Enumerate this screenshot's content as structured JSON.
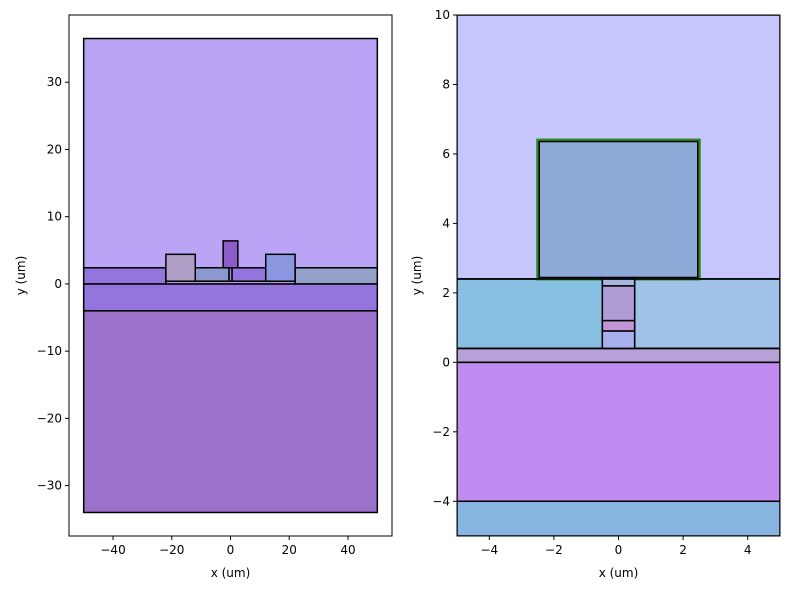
{
  "chart_data": [
    {
      "type": "layout",
      "xlabel": "x (um)",
      "ylabel": "y (um)",
      "xlim": [
        -55,
        55
      ],
      "ylim": [
        -37.5,
        40
      ],
      "xticks": [
        -40,
        -20,
        0,
        20,
        40
      ],
      "xtick_labels": [
        "−40",
        "−20",
        "0",
        "20",
        "40"
      ],
      "yticks": [
        -30,
        -20,
        -10,
        0,
        10,
        20,
        30
      ],
      "ytick_labels": [
        "−30",
        "−20",
        "−10",
        "0",
        "10",
        "20",
        "30"
      ],
      "rects": [
        {
          "name": "top-cladding",
          "x0": -50,
          "x1": 50,
          "y0": 2.4,
          "y1": 36.5,
          "fill": "#b9a4f6"
        },
        {
          "name": "bottom-substrate",
          "x0": -50,
          "x1": 50,
          "y0": -34,
          "y1": -4,
          "fill": "#9a72cc"
        },
        {
          "name": "box-layer",
          "x0": -50,
          "x1": 50,
          "y0": -4,
          "y1": 0,
          "fill": "#9474dd"
        },
        {
          "name": "slab-left",
          "x0": -50,
          "x1": -22,
          "y0": 0,
          "y1": 2.4,
          "fill": "#9474dd"
        },
        {
          "name": "slab-left-mid",
          "x0": -22,
          "x1": -13,
          "y0": 0.4,
          "y1": 2.4,
          "fill": "#a68fcf"
        },
        {
          "name": "slab-center-left",
          "x0": -13,
          "x1": -0.5,
          "y0": 0.4,
          "y1": 2.4,
          "fill": "#8d98cf"
        },
        {
          "name": "slab-center-right",
          "x0": 0.5,
          "x1": 13,
          "y0": 0.4,
          "y1": 2.4,
          "fill": "#9474dd"
        },
        {
          "name": "slab-right",
          "x0": 22,
          "x1": 50,
          "y0": 0,
          "y1": 2.4,
          "fill": "#94a0c8"
        },
        {
          "name": "thin-layer",
          "x0": -22,
          "x1": 22,
          "y0": 0,
          "y1": 0.4,
          "fill": "#b09cd8"
        },
        {
          "name": "left-electrode",
          "x0": -22,
          "x1": -12,
          "y0": 0.4,
          "y1": 4.4,
          "fill": "#b0a0c8"
        },
        {
          "name": "center-waveguide",
          "x0": -2.5,
          "x1": 2.5,
          "y0": 2.4,
          "y1": 6.4,
          "fill": "#8c5cc8"
        },
        {
          "name": "right-electrode",
          "x0": 12,
          "x1": 22,
          "y0": 0.4,
          "y1": 4.4,
          "fill": "#8a96e0"
        },
        {
          "name": "center-core",
          "x0": -0.5,
          "x1": 0.5,
          "y0": 0.4,
          "y1": 2.4,
          "fill": "#a08ad8"
        }
      ]
    },
    {
      "type": "layout",
      "xlabel": "x (um)",
      "ylabel": "y (um)",
      "xlim": [
        -5,
        5
      ],
      "ylim": [
        -5,
        10
      ],
      "xticks": [
        -4,
        -2,
        0,
        2,
        4
      ],
      "xtick_labels": [
        "−4",
        "−2",
        "0",
        "2",
        "4"
      ],
      "yticks": [
        -4,
        -2,
        0,
        2,
        4,
        6,
        8,
        10
      ],
      "ytick_labels": [
        "−4",
        "−2",
        "0",
        "2",
        "4",
        "6",
        "8",
        "10"
      ],
      "rects": [
        {
          "name": "top-cladding",
          "x0": -5,
          "x1": 5,
          "y0": 2.4,
          "y1": 10,
          "fill": "#c6c6fc"
        },
        {
          "name": "slab-left",
          "x0": -5,
          "x1": -0.5,
          "y0": 0.4,
          "y1": 2.4,
          "fill": "#88c0e4"
        },
        {
          "name": "slab-right",
          "x0": 0.5,
          "x1": 5,
          "y0": 0.4,
          "y1": 2.4,
          "fill": "#a0c2e8"
        },
        {
          "name": "thin-layer",
          "x0": -5,
          "x1": 5,
          "y0": 0,
          "y1": 0.4,
          "fill": "#b8a0d8"
        },
        {
          "name": "box-layer",
          "x0": -5,
          "x1": 5,
          "y0": -4,
          "y1": 0,
          "fill": "#c08cf2"
        },
        {
          "name": "substrate",
          "x0": -5,
          "x1": 5,
          "y0": -5,
          "y1": -4,
          "fill": "#88b4e2"
        },
        {
          "name": "waveguide",
          "x0": -2.5,
          "x1": 2.5,
          "y0": 2.4,
          "y1": 6.4,
          "fill": "#8eaad8",
          "outline": "#2a8a2a"
        },
        {
          "name": "core-top",
          "x0": -0.5,
          "x1": 0.5,
          "y0": 2.2,
          "y1": 2.4,
          "fill": "#a8b6e0"
        },
        {
          "name": "core-upper",
          "x0": -0.5,
          "x1": 0.5,
          "y0": 1.2,
          "y1": 2.2,
          "fill": "#b09cd4"
        },
        {
          "name": "core-mid",
          "x0": -0.5,
          "x1": 0.5,
          "y0": 0.9,
          "y1": 1.2,
          "fill": "#c294d6"
        },
        {
          "name": "core-bottom",
          "x0": -0.5,
          "x1": 0.5,
          "y0": 0.4,
          "y1": 0.9,
          "fill": "#a8b0ee"
        }
      ],
      "hlines": [
        2.4,
        0.4,
        0,
        -4
      ]
    }
  ]
}
